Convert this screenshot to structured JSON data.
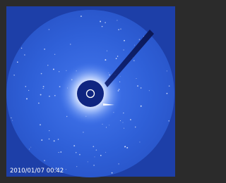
{
  "image": {
    "timestamp": "2010/01/07 00:42"
  }
}
